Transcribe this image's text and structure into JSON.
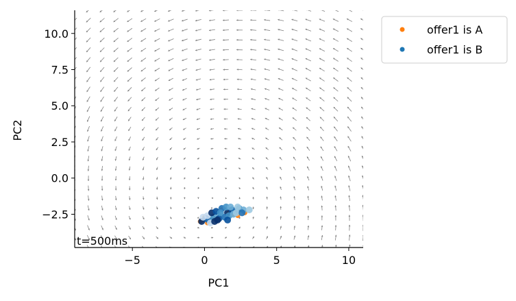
{
  "chart_data": {
    "type": "scatter",
    "title": "",
    "xlabel": "PC1",
    "ylabel": "PC2",
    "xlim": [
      -9,
      11
    ],
    "ylim": [
      -4.8,
      11.6
    ],
    "xticks": [
      -5,
      0,
      5,
      10
    ],
    "xtick_labels": [
      "−5",
      "0",
      "5",
      "10"
    ],
    "yticks": [
      -2.5,
      0.0,
      2.5,
      5.0,
      7.5,
      10.0
    ],
    "ytick_labels": [
      "−2.5",
      "0.0",
      "2.5",
      "5.0",
      "7.5",
      "10.0"
    ],
    "grid": false,
    "legend_position": "outside-top-right",
    "annotation": "t=500ms",
    "flow_field": {
      "fixed_point": [
        0.5,
        -1.5
      ],
      "grid_x": [
        -9,
        11,
        22
      ],
      "grid_y": [
        -4.8,
        11.6,
        25
      ],
      "arrow_color": "#808080"
    },
    "series": [
      {
        "name": "offer1 is A",
        "color": "#ff7f0e",
        "points": [
          [
            -0.3,
            -3.0
          ],
          [
            0.0,
            -2.7
          ],
          [
            0.5,
            -2.9
          ],
          [
            1.0,
            -2.6
          ],
          [
            1.5,
            -2.4
          ],
          [
            2.0,
            -2.5
          ],
          [
            2.5,
            -2.2
          ],
          [
            2.8,
            -2.4
          ],
          [
            1.8,
            -2.3
          ],
          [
            0.8,
            -2.8
          ],
          [
            0.2,
            -3.1
          ],
          [
            1.2,
            -2.2
          ],
          [
            2.3,
            -2.6
          ],
          [
            -0.1,
            -2.9
          ]
        ]
      },
      {
        "name": "offer1 is B",
        "color": "#1f77b4",
        "points": [
          [
            -0.2,
            -3.0
          ],
          [
            0.1,
            -2.8
          ],
          [
            0.3,
            -2.9
          ],
          [
            0.6,
            -2.7
          ],
          [
            0.9,
            -2.5
          ],
          [
            1.1,
            -2.6
          ],
          [
            1.3,
            -2.3
          ],
          [
            1.6,
            -2.4
          ],
          [
            1.9,
            -2.2
          ],
          [
            2.1,
            -2.3
          ],
          [
            2.4,
            -2.1
          ],
          [
            2.7,
            -2.2
          ],
          [
            3.1,
            -2.2
          ],
          [
            0.4,
            -3.1
          ],
          [
            0.7,
            -3.0
          ],
          [
            1.0,
            -2.8
          ],
          [
            1.4,
            -2.7
          ],
          [
            1.7,
            -2.6
          ],
          [
            2.0,
            -2.5
          ],
          [
            2.2,
            -2.4
          ],
          [
            0.2,
            -2.6
          ],
          [
            0.5,
            -2.4
          ],
          [
            0.8,
            -2.3
          ],
          [
            1.2,
            -2.1
          ],
          [
            1.5,
            -2.0
          ],
          [
            1.8,
            -2.0
          ],
          [
            2.3,
            -2.0
          ],
          [
            -0.1,
            -2.7
          ],
          [
            0.9,
            -2.9
          ],
          [
            1.6,
            -2.9
          ],
          [
            2.6,
            -2.4
          ],
          [
            1.1,
            -2.4
          ]
        ]
      }
    ],
    "point_shades": [
      "#08306b",
      "#08519c",
      "#2171b5",
      "#4292c6",
      "#6baed6",
      "#9ecae1",
      "#c6dbef"
    ]
  }
}
